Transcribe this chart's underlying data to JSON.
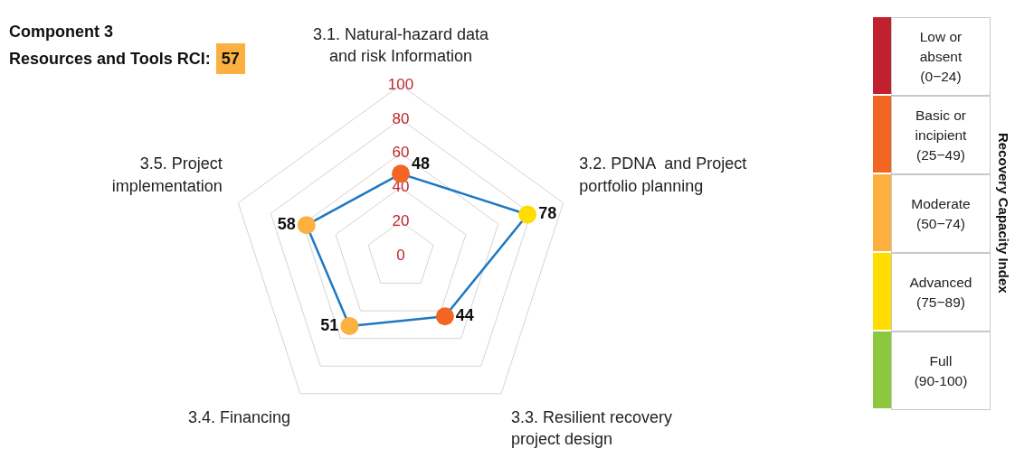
{
  "chart_data": [
    {
      "type": "radar",
      "title": "Component 3",
      "subtitle": "Resources and Tools RCI:",
      "annotations": [
        "57"
      ],
      "categories": [
        "3.1. Natural-hazard data\nand risk Information",
        "3.2. PDNA  and Project\nportfolio planning",
        "3.3. Resilient recovery\nproject design",
        "3.4. Financing",
        "3.5. Project\nimplementation"
      ],
      "series": [
        {
          "color": "#1f78c1",
          "colors": [
            "#f26522",
            "#ffdd00",
            "#f26522",
            "#fbb040",
            "#fbb040"
          ],
          "values": [
            48,
            78,
            44,
            51,
            58
          ]
        }
      ],
      "ylim": [
        0,
        100
      ],
      "yticks": [
        0,
        20,
        40,
        60,
        80,
        100
      ],
      "grid": true,
      "data_labels": true,
      "marker": "circle"
    },
    {
      "type": "other",
      "title": "Recovery Capacity Index",
      "categories": [
        "Low or\nabsent\n(0−24)",
        "Basic or\nincipient\n(25−49)",
        "Moderate\n(50−74)",
        "Advanced\n(75−89)",
        "Full\n(90-100)"
      ],
      "colors": [
        "#c1202f",
        "#f26522",
        "#fbb040",
        "#ffdd00",
        "#8dc63f"
      ]
    }
  ]
}
